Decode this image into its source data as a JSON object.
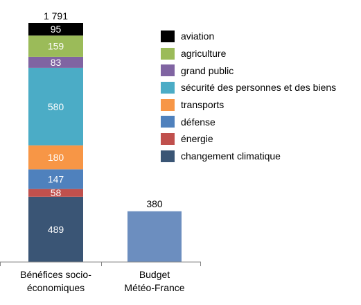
{
  "chart_data": {
    "type": "bar",
    "stacked": true,
    "categories": [
      "Bénéfices socio-économiques",
      "Budget Météo-France"
    ],
    "category_lines": [
      [
        "Bénéfices socio-",
        "économiques"
      ],
      [
        "Budget",
        "Météo-France"
      ]
    ],
    "stacked_series": [
      {
        "name": "changement climatique",
        "value": 489,
        "label": "489",
        "color": "#3a5575"
      },
      {
        "name": "énergie",
        "value": 58,
        "label": "58",
        "color": "#c0504d"
      },
      {
        "name": "défense",
        "value": 147,
        "label": "147",
        "color": "#4f81bd"
      },
      {
        "name": "transports",
        "value": 180,
        "label": "180",
        "color": "#f79646"
      },
      {
        "name": "sécurité des personnes et des biens",
        "value": 580,
        "label": "580",
        "color": "#4bacc6"
      },
      {
        "name": "grand public",
        "value": 83,
        "label": "83",
        "color": "#8064a2"
      },
      {
        "name": "agriculture",
        "value": 159,
        "label": "159",
        "color": "#9bbb59"
      },
      {
        "name": "aviation",
        "value": 95,
        "label": "95",
        "color": "#000000"
      }
    ],
    "stack_total": 1791,
    "stack_total_label": "1 791",
    "budget": {
      "value": 380,
      "label": "380",
      "color": "#6c8ebf"
    },
    "legend": {
      "placement": "right",
      "order": [
        "aviation",
        "agriculture",
        "grand public",
        "sécurité des personnes et des biens",
        "transports",
        "défense",
        "énergie",
        "changement climatique"
      ]
    },
    "ylim": [
      0,
      1791
    ],
    "grid": false,
    "title": "",
    "xlabel": "",
    "ylabel": ""
  }
}
